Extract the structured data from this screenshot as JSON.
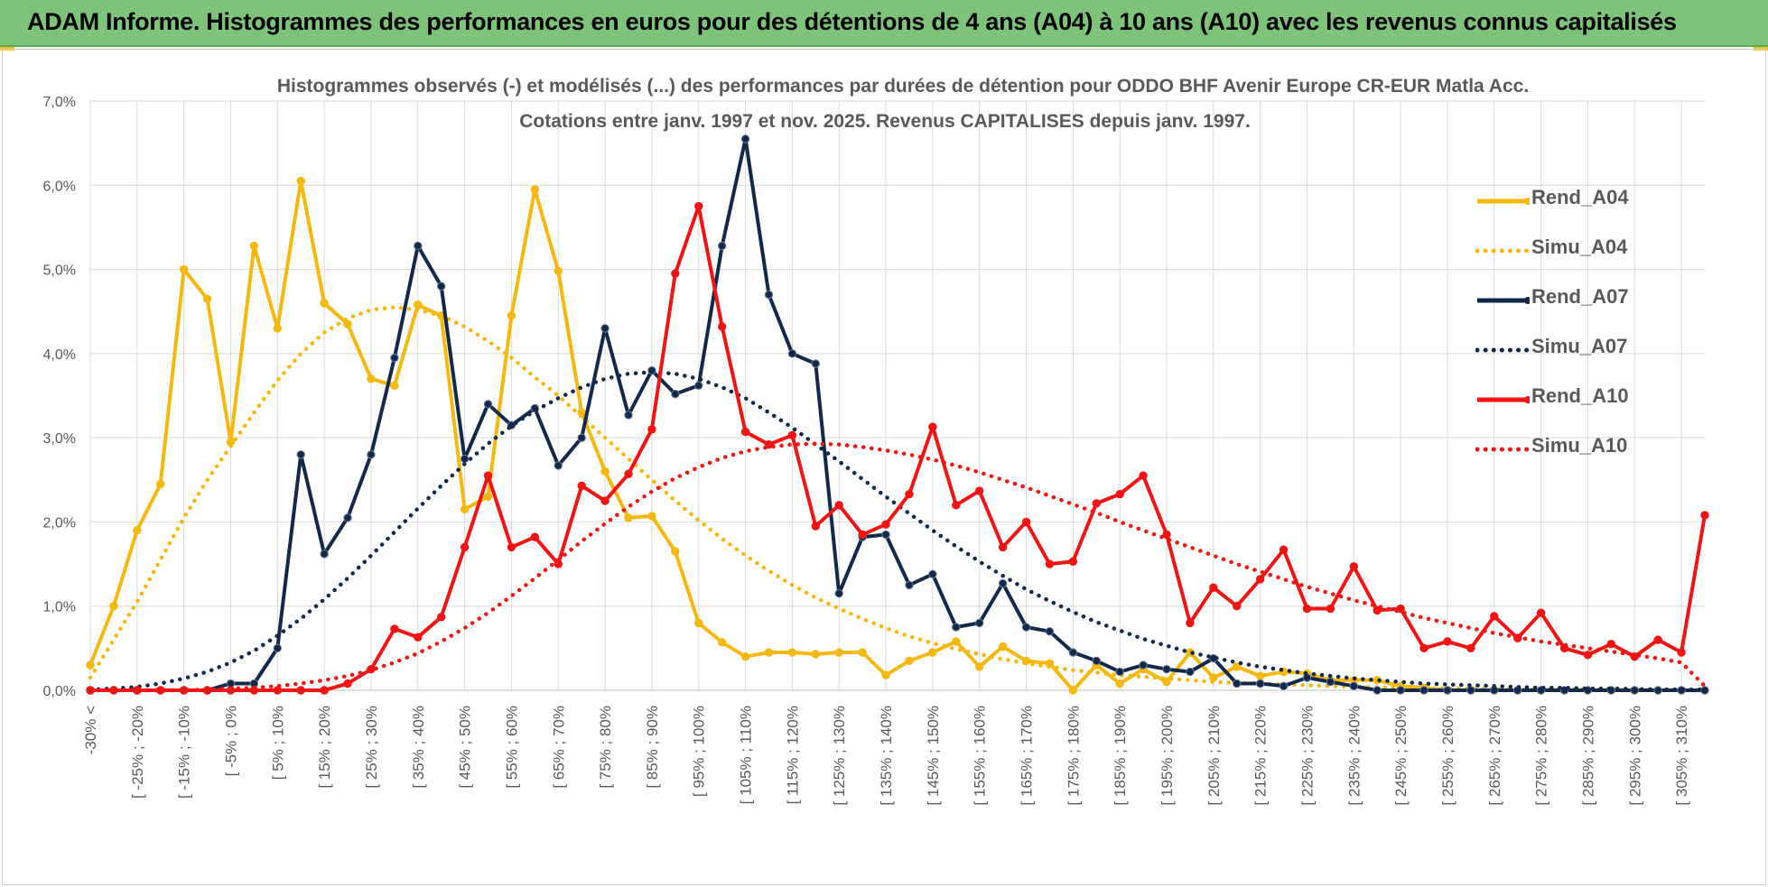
{
  "banner": {
    "title": "ADAM Informe. Histogrammes des performances en euros pour des détentions de 4 ans (A04) à 10 ans (A10) avec les revenus connus capitalisés"
  },
  "colors": {
    "banner_bg": "#7dc47a",
    "A04": "#f5b80f",
    "A07": "#13294b",
    "A10": "#f21313",
    "grid": "#d9d9d9",
    "text": "#595959"
  },
  "chart_data": {
    "type": "line",
    "title": "Histogrammes observés (-) et modélisés (...) des performances par durées de détention pour ODDO BHF Avenir Europe CR-EUR Matla Acc.",
    "subtitle": "Cotations entre janv. 1997 et nov. 2025. Revenus CAPITALISES depuis janv. 1997.",
    "xlabel": "",
    "ylabel": "",
    "ylim": [
      0,
      7
    ],
    "y_ticks": [
      "0,0%",
      "1,0%",
      "2,0%",
      "3,0%",
      "4,0%",
      "5,0%",
      "6,0%",
      "7,0%"
    ],
    "x_tick_labels": [
      "-30% <",
      "[ -25% ; -20%",
      "[ -15% ; -10%",
      "[ -5% ; 0%",
      "[ 5% ; 10%",
      "[ 15% ; 20%",
      "[ 25% ; 30%",
      "[ 35% ; 40%",
      "[ 45% ; 50%",
      "[ 55% ; 60%",
      "[ 65% ; 70%",
      "[ 75% ; 80%",
      "[ 85% ; 90%",
      "[ 95% ; 100%",
      "[ 105% ; 110%",
      "[ 115% ; 120%",
      "[ 125% ; 130%",
      "[ 135% ; 140%",
      "[ 145% ; 150%",
      "[ 155% ; 160%",
      "[ 165% ; 170%",
      "[ 175% ; 180%",
      "[ 185% ; 190%",
      "[ 195% ; 200%",
      "[ 205% ; 210%",
      "[ 215% ; 220%",
      "[ 225% ; 230%",
      "[ 235% ; 240%",
      "[ 245% ; 250%",
      "[ 255% ; 260%",
      "[ 265% ; 270%",
      "[ 275% ; 280%",
      "[ 285% ; 290%",
      "[ 295% ; 300%",
      "[ 305% ; 310%"
    ],
    "legend_position": "right",
    "series": [
      {
        "name": "Rend_A04",
        "style": "solid",
        "markers": true,
        "color_key": "A04",
        "values": [
          0.3,
          1.0,
          1.9,
          2.45,
          5.0,
          4.65,
          2.95,
          5.28,
          4.3,
          6.05,
          4.6,
          4.35,
          3.7,
          3.62,
          4.58,
          4.45,
          2.15,
          2.3,
          4.45,
          5.95,
          4.98,
          3.3,
          2.6,
          2.05,
          2.07,
          1.65,
          0.8,
          0.57,
          0.4,
          0.45,
          0.45,
          0.43,
          0.45,
          0.45,
          0.18,
          0.35,
          0.45,
          0.58,
          0.28,
          0.52,
          0.35,
          0.32,
          0.0,
          0.3,
          0.08,
          0.25,
          0.1,
          0.45,
          0.15,
          0.28,
          0.17,
          0.22,
          0.2,
          0.12,
          0.12,
          0.12,
          0.05,
          0.03,
          0.0,
          0.0,
          0.0,
          0.0,
          0.0,
          0.0,
          0.0,
          0.0,
          0.0,
          0.0,
          0.0,
          0.0
        ]
      },
      {
        "name": "Simu_A04",
        "style": "dotted",
        "markers": false,
        "color_key": "A04",
        "values": [
          0.15,
          0.6,
          1.05,
          1.55,
          2.05,
          2.5,
          2.9,
          3.3,
          3.68,
          4.0,
          4.25,
          4.42,
          4.52,
          4.55,
          4.52,
          4.45,
          4.32,
          4.15,
          3.95,
          3.72,
          3.5,
          3.25,
          3.0,
          2.75,
          2.5,
          2.25,
          2.02,
          1.8,
          1.6,
          1.42,
          1.25,
          1.1,
          0.97,
          0.85,
          0.74,
          0.64,
          0.56,
          0.49,
          0.43,
          0.37,
          0.32,
          0.28,
          0.24,
          0.21,
          0.18,
          0.16,
          0.14,
          0.12,
          0.1,
          0.09,
          0.08,
          0.07,
          0.06,
          0.05,
          0.04,
          0.035,
          0.03,
          0.025,
          0.02,
          0.02,
          0.015,
          0.01,
          0.01,
          0.01,
          0.01,
          0.005,
          0.005,
          0.005,
          0.0,
          0.0
        ]
      },
      {
        "name": "Rend_A07",
        "style": "solid",
        "markers": true,
        "color_key": "A07",
        "values": [
          0.0,
          0.0,
          0.0,
          0.0,
          0.0,
          0.0,
          0.08,
          0.08,
          0.5,
          2.8,
          1.62,
          2.05,
          2.8,
          3.95,
          5.28,
          4.8,
          2.75,
          3.4,
          3.15,
          3.35,
          2.67,
          3.0,
          4.3,
          3.27,
          3.8,
          3.52,
          3.62,
          5.28,
          6.55,
          4.7,
          4.0,
          3.88,
          1.15,
          1.82,
          1.85,
          1.25,
          1.38,
          0.75,
          0.8,
          1.27,
          0.75,
          0.7,
          0.45,
          0.35,
          0.22,
          0.3,
          0.25,
          0.22,
          0.38,
          0.08,
          0.08,
          0.05,
          0.15,
          0.1,
          0.05,
          0.0,
          0.0,
          0.0,
          0.0,
          0.0,
          0.0,
          0.0,
          0.0,
          0.0,
          0.0,
          0.0,
          0.0,
          0.0,
          0.0,
          0.0
        ]
      },
      {
        "name": "Simu_A07",
        "style": "dotted",
        "markers": false,
        "color_key": "A07",
        "values": [
          0.01,
          0.02,
          0.04,
          0.08,
          0.14,
          0.22,
          0.33,
          0.47,
          0.65,
          0.85,
          1.08,
          1.33,
          1.6,
          1.88,
          2.16,
          2.43,
          2.69,
          2.93,
          3.14,
          3.32,
          3.47,
          3.6,
          3.7,
          3.76,
          3.78,
          3.76,
          3.7,
          3.6,
          3.47,
          3.3,
          3.12,
          2.92,
          2.72,
          2.51,
          2.3,
          2.1,
          1.9,
          1.71,
          1.53,
          1.36,
          1.2,
          1.06,
          0.93,
          0.81,
          0.71,
          0.61,
          0.53,
          0.45,
          0.39,
          0.33,
          0.28,
          0.24,
          0.2,
          0.17,
          0.14,
          0.12,
          0.1,
          0.08,
          0.07,
          0.06,
          0.05,
          0.04,
          0.03,
          0.03,
          0.02,
          0.02,
          0.015,
          0.01,
          0.01,
          0.01
        ]
      },
      {
        "name": "Rend_A10",
        "style": "solid",
        "markers": true,
        "color_key": "A10",
        "values": [
          0.0,
          0.0,
          0.0,
          0.0,
          0.0,
          0.0,
          0.0,
          0.0,
          0.0,
          0.0,
          0.0,
          0.08,
          0.25,
          0.73,
          0.63,
          0.87,
          1.7,
          2.55,
          1.7,
          1.82,
          1.5,
          2.43,
          2.25,
          2.57,
          3.1,
          4.95,
          5.75,
          4.32,
          3.07,
          2.92,
          3.03,
          1.95,
          2.2,
          1.85,
          1.97,
          2.33,
          3.13,
          2.2,
          2.37,
          1.7,
          2.0,
          1.5,
          1.53,
          2.22,
          2.33,
          2.55,
          1.85,
          0.8,
          1.22,
          1.0,
          1.32,
          1.67,
          0.97,
          0.97,
          1.47,
          0.95,
          0.97,
          0.5,
          0.58,
          0.5,
          0.88,
          0.62,
          0.92,
          0.5,
          0.42,
          0.55,
          0.4,
          0.6,
          0.45,
          2.08
        ]
      },
      {
        "name": "Simu_A10",
        "style": "dotted",
        "markers": false,
        "color_key": "A10",
        "values": [
          0.0,
          0.0,
          0.0,
          0.0,
          0.0,
          0.01,
          0.02,
          0.03,
          0.05,
          0.08,
          0.12,
          0.17,
          0.24,
          0.33,
          0.44,
          0.58,
          0.74,
          0.92,
          1.12,
          1.33,
          1.55,
          1.77,
          1.98,
          2.18,
          2.36,
          2.52,
          2.65,
          2.76,
          2.84,
          2.89,
          2.92,
          2.93,
          2.92,
          2.89,
          2.85,
          2.8,
          2.74,
          2.67,
          2.59,
          2.5,
          2.41,
          2.31,
          2.21,
          2.11,
          2.0,
          1.9,
          1.8,
          1.7,
          1.6,
          1.5,
          1.41,
          1.32,
          1.23,
          1.15,
          1.07,
          1.0,
          0.93,
          0.86,
          0.8,
          0.74,
          0.68,
          0.63,
          0.58,
          0.54,
          0.5,
          0.46,
          0.42,
          0.38,
          0.33,
          0.05
        ]
      }
    ]
  }
}
